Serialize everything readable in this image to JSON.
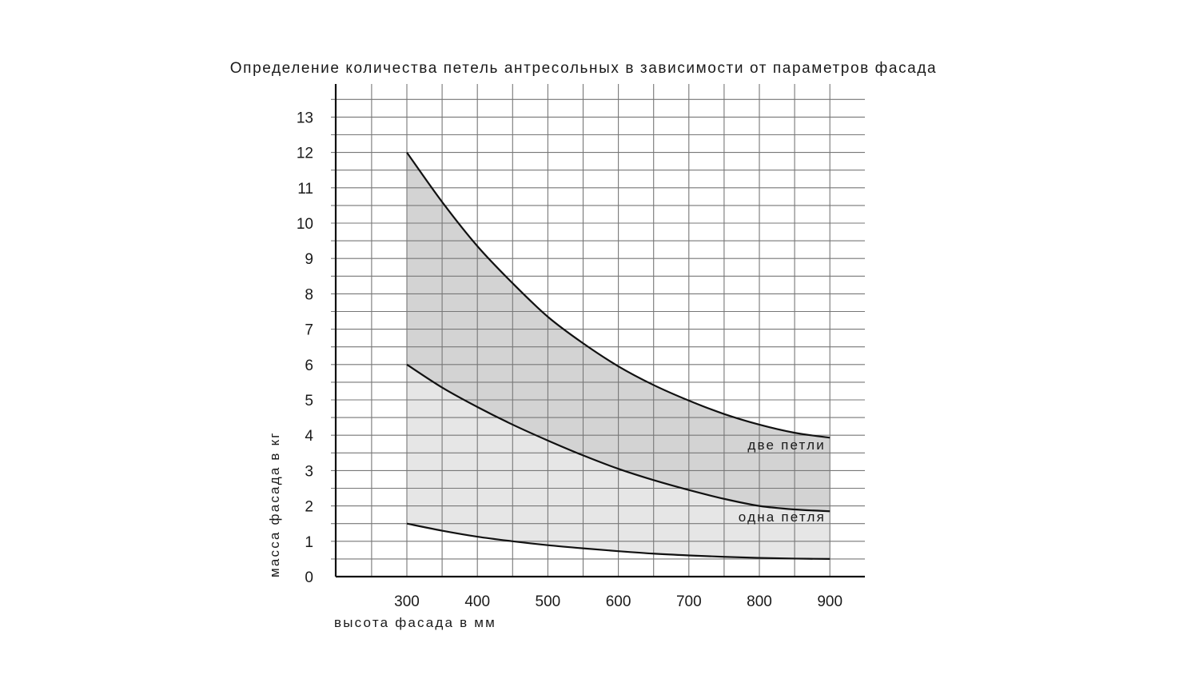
{
  "chart_data": {
    "type": "area",
    "title": "Определение количества петель антресольных в зависимости от параметров фасада",
    "xlabel": "высота фасада в мм",
    "ylabel": "масса фасада в кг",
    "xlim": [
      200,
      950
    ],
    "ylim": [
      0,
      13.5
    ],
    "x_ticks": [
      300,
      400,
      500,
      600,
      700,
      800,
      900
    ],
    "y_ticks": [
      0,
      1,
      2,
      3,
      4,
      5,
      6,
      7,
      8,
      9,
      10,
      11,
      12,
      13
    ],
    "grid": true,
    "x": [
      300,
      350,
      400,
      450,
      500,
      550,
      600,
      650,
      700,
      750,
      800,
      850,
      900
    ],
    "series": [
      {
        "name": "",
        "values": [
          1.5,
          1.3,
          1.13,
          1.0,
          0.89,
          0.8,
          0.72,
          0.65,
          0.6,
          0.56,
          0.53,
          0.51,
          0.5
        ]
      },
      {
        "name": "",
        "values": [
          6.0,
          5.35,
          4.8,
          4.3,
          3.85,
          3.43,
          3.05,
          2.73,
          2.45,
          2.2,
          2.0,
          1.9,
          1.85
        ]
      },
      {
        "name": "",
        "values": [
          12.0,
          10.6,
          9.35,
          8.3,
          7.35,
          6.6,
          5.95,
          5.42,
          4.98,
          4.6,
          4.3,
          4.07,
          3.93
        ]
      }
    ],
    "regions": [
      {
        "label": "одна петля",
        "fill": "#e6e6e6",
        "between": [
          0,
          1
        ]
      },
      {
        "label": "две петли",
        "fill": "#d3d3d3",
        "between": [
          1,
          2
        ]
      }
    ],
    "colors": {
      "grid": "#777777",
      "axis": "#111111",
      "curve": "#111111"
    }
  }
}
